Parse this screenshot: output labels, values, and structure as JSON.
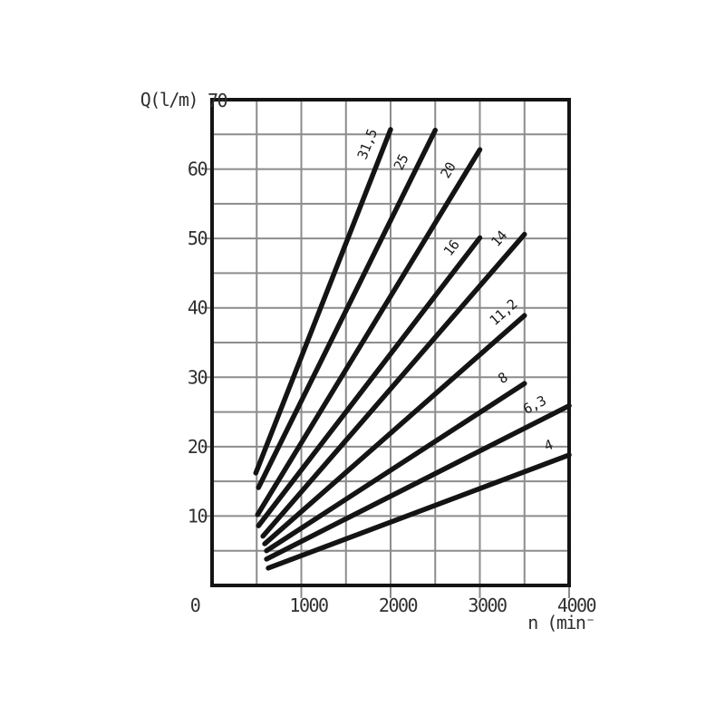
{
  "figure": {
    "y_axis_title": "Q(l/m)",
    "x_axis_title": "n (min⁻"
  },
  "chart_data": {
    "type": "line",
    "title": "",
    "ylabel": "Q(l/m)",
    "xlabel": "n (min⁻",
    "xlim": [
      0,
      4000
    ],
    "ylim": [
      0,
      70
    ],
    "x_tick_labels": [
      0,
      1000,
      2000,
      3000,
      4000
    ],
    "y_tick_labels": [
      0,
      10,
      20,
      30,
      40,
      50,
      60,
      70
    ],
    "x_grid_step": 500,
    "y_grid_step": 5,
    "grid": true,
    "legend_position": "inline-rotated-labels-on-curves",
    "series": [
      {
        "label": "31,5",
        "points": [
          [
            490,
            16.2
          ],
          [
            2000,
            65.7
          ]
        ],
        "label_t": 0.94
      },
      {
        "label": "25",
        "points": [
          [
            520,
            14.1
          ],
          [
            2500,
            65.6
          ]
        ],
        "label_t": 0.89
      },
      {
        "label": "20",
        "points": [
          [
            510,
            10.2
          ],
          [
            3000,
            62.8
          ]
        ],
        "label_t": 0.92
      },
      {
        "label": "16",
        "points": [
          [
            520,
            8.6
          ],
          [
            3000,
            50.1
          ]
        ],
        "label_t": 0.93
      },
      {
        "label": "14",
        "points": [
          [
            570,
            7.1
          ],
          [
            3500,
            50.6
          ]
        ],
        "label_t": 0.95
      },
      {
        "label": "11,2",
        "points": [
          [
            590,
            6.0
          ],
          [
            3500,
            38.9
          ]
        ],
        "label_t": 0.96
      },
      {
        "label": "8",
        "points": [
          [
            610,
            5.0
          ],
          [
            3500,
            29.1
          ]
        ],
        "label_t": 0.95
      },
      {
        "label": "6,3",
        "points": [
          [
            610,
            3.8
          ],
          [
            4000,
            25.9
          ]
        ],
        "label_t": 0.91
      },
      {
        "label": "4",
        "points": [
          [
            630,
            2.5
          ],
          [
            4000,
            18.8
          ]
        ],
        "label_t": 0.95
      }
    ],
    "colors": {
      "curve": "#141414",
      "grid": "#8c8c8c",
      "frame": "#141414",
      "text": "#303030",
      "background": "#ffffff"
    }
  }
}
